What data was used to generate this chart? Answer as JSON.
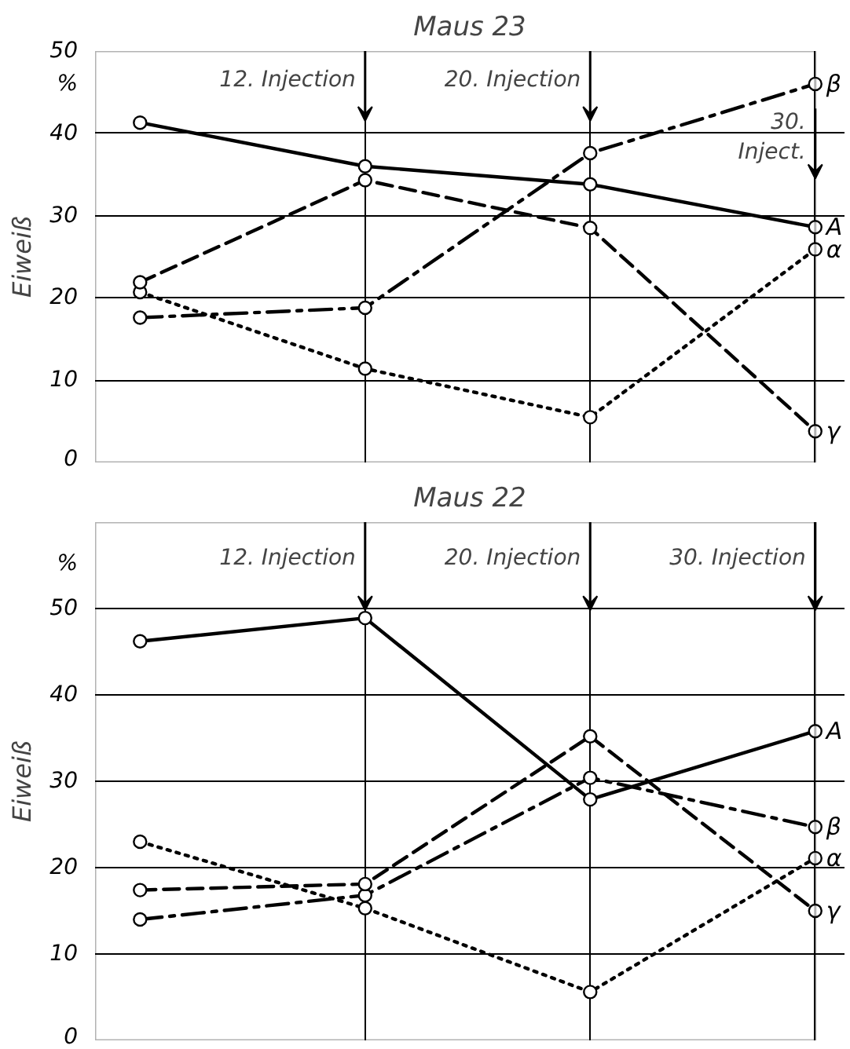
{
  "chart_data": [
    {
      "type": "line",
      "title": "Maus 23",
      "ylabel": "Eiweiß",
      "categories": [
        null,
        null,
        null,
        null
      ],
      "ylim": [
        0,
        50
      ],
      "yticks": [
        0,
        10,
        20,
        30,
        40,
        50
      ],
      "grid": true,
      "marker": "circle",
      "tick_labels": "y",
      "annotations": [
        "%",
        "12. Injection",
        "20. Injection",
        "30.\nInject."
      ],
      "series": [
        {
          "name": "A",
          "color": "#000000",
          "line_style": "solid",
          "values": [
            41.3,
            36,
            33.8,
            28.6
          ]
        },
        {
          "name": "β",
          "color": "#000000",
          "line_style": "dashdot",
          "values": [
            17.6,
            18.8,
            37.6,
            46
          ]
        },
        {
          "name": "α",
          "color": "#000000",
          "line_style": "dotted",
          "values": [
            20.7,
            11.4,
            5.5,
            25.9
          ]
        },
        {
          "name": "γ",
          "color": "#000000",
          "line_style": "dashed",
          "values": [
            21.9,
            34.3,
            28.5,
            3.8
          ]
        }
      ]
    },
    {
      "type": "line",
      "title": "Maus 22",
      "ylabel": "Eiweiß",
      "categories": [
        null,
        null,
        null,
        null
      ],
      "ylim": [
        0,
        60
      ],
      "yticks": [
        0,
        10,
        20,
        30,
        40,
        50
      ],
      "grid": true,
      "marker": "circle",
      "tick_labels": "y",
      "annotations": [
        "%",
        "12. Injection",
        "20. Injection",
        "30. Injection"
      ],
      "series": [
        {
          "name": "A",
          "color": "#000000",
          "line_style": "solid",
          "values": [
            46.2,
            48.9,
            27.9,
            35.8
          ]
        },
        {
          "name": "β",
          "color": "#000000",
          "line_style": "dashdot",
          "values": [
            14,
            16.8,
            30.4,
            24.7
          ]
        },
        {
          "name": "α",
          "color": "#000000",
          "line_style": "dotted",
          "values": [
            23,
            15.3,
            5.6,
            21.1
          ]
        },
        {
          "name": "γ",
          "color": "#000000",
          "line_style": "dashed",
          "values": [
            17.4,
            18.1,
            35.2,
            15
          ]
        }
      ]
    }
  ]
}
